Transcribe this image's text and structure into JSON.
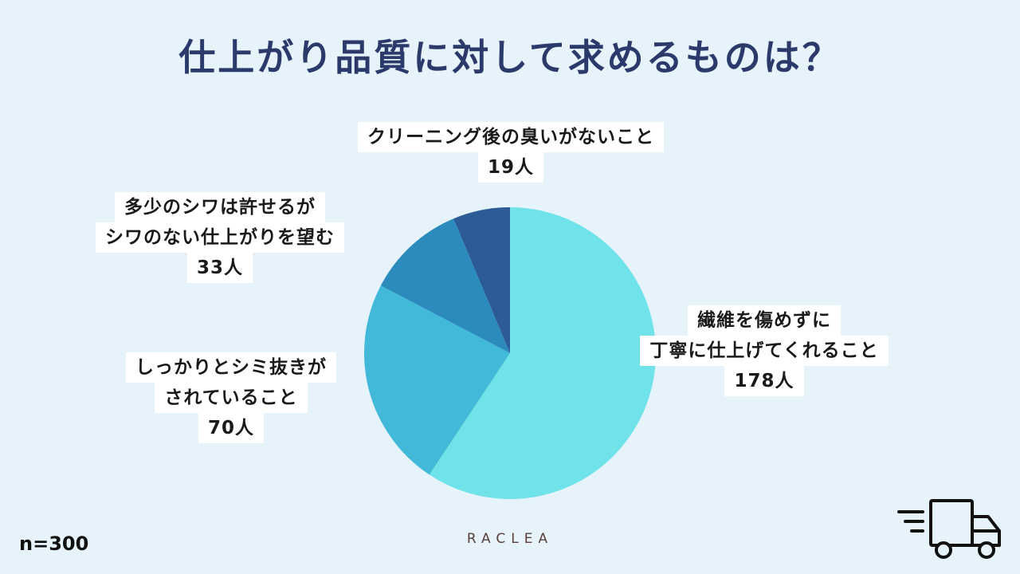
{
  "chart_data": {
    "type": "pie",
    "title": "仕上がり品質に対して求めるものは？",
    "slices": [
      {
        "lines": [
          "繊維を傷めずに",
          "丁寧に仕上げてくれること"
        ],
        "value_label": "178人",
        "value": 178,
        "color": "#6fe3e9"
      },
      {
        "lines": [
          "しっかりとシミ抜きが",
          "されていること"
        ],
        "value_label": "70人",
        "value": 70,
        "color": "#42b9d8"
      },
      {
        "lines": [
          "多少のシワは許せるが",
          "シワのない仕上がりを望む"
        ],
        "value_label": "33人",
        "value": 33,
        "color": "#2b8bbd"
      },
      {
        "lines": [
          "クリーニング後の臭いがないこと"
        ],
        "value_label": "19人",
        "value": 19,
        "color": "#2d5b98"
      }
    ]
  },
  "footer": {
    "sample_size": "n=300",
    "brand": "RACLEA"
  },
  "icons": {
    "truck": "delivery-truck-icon"
  }
}
